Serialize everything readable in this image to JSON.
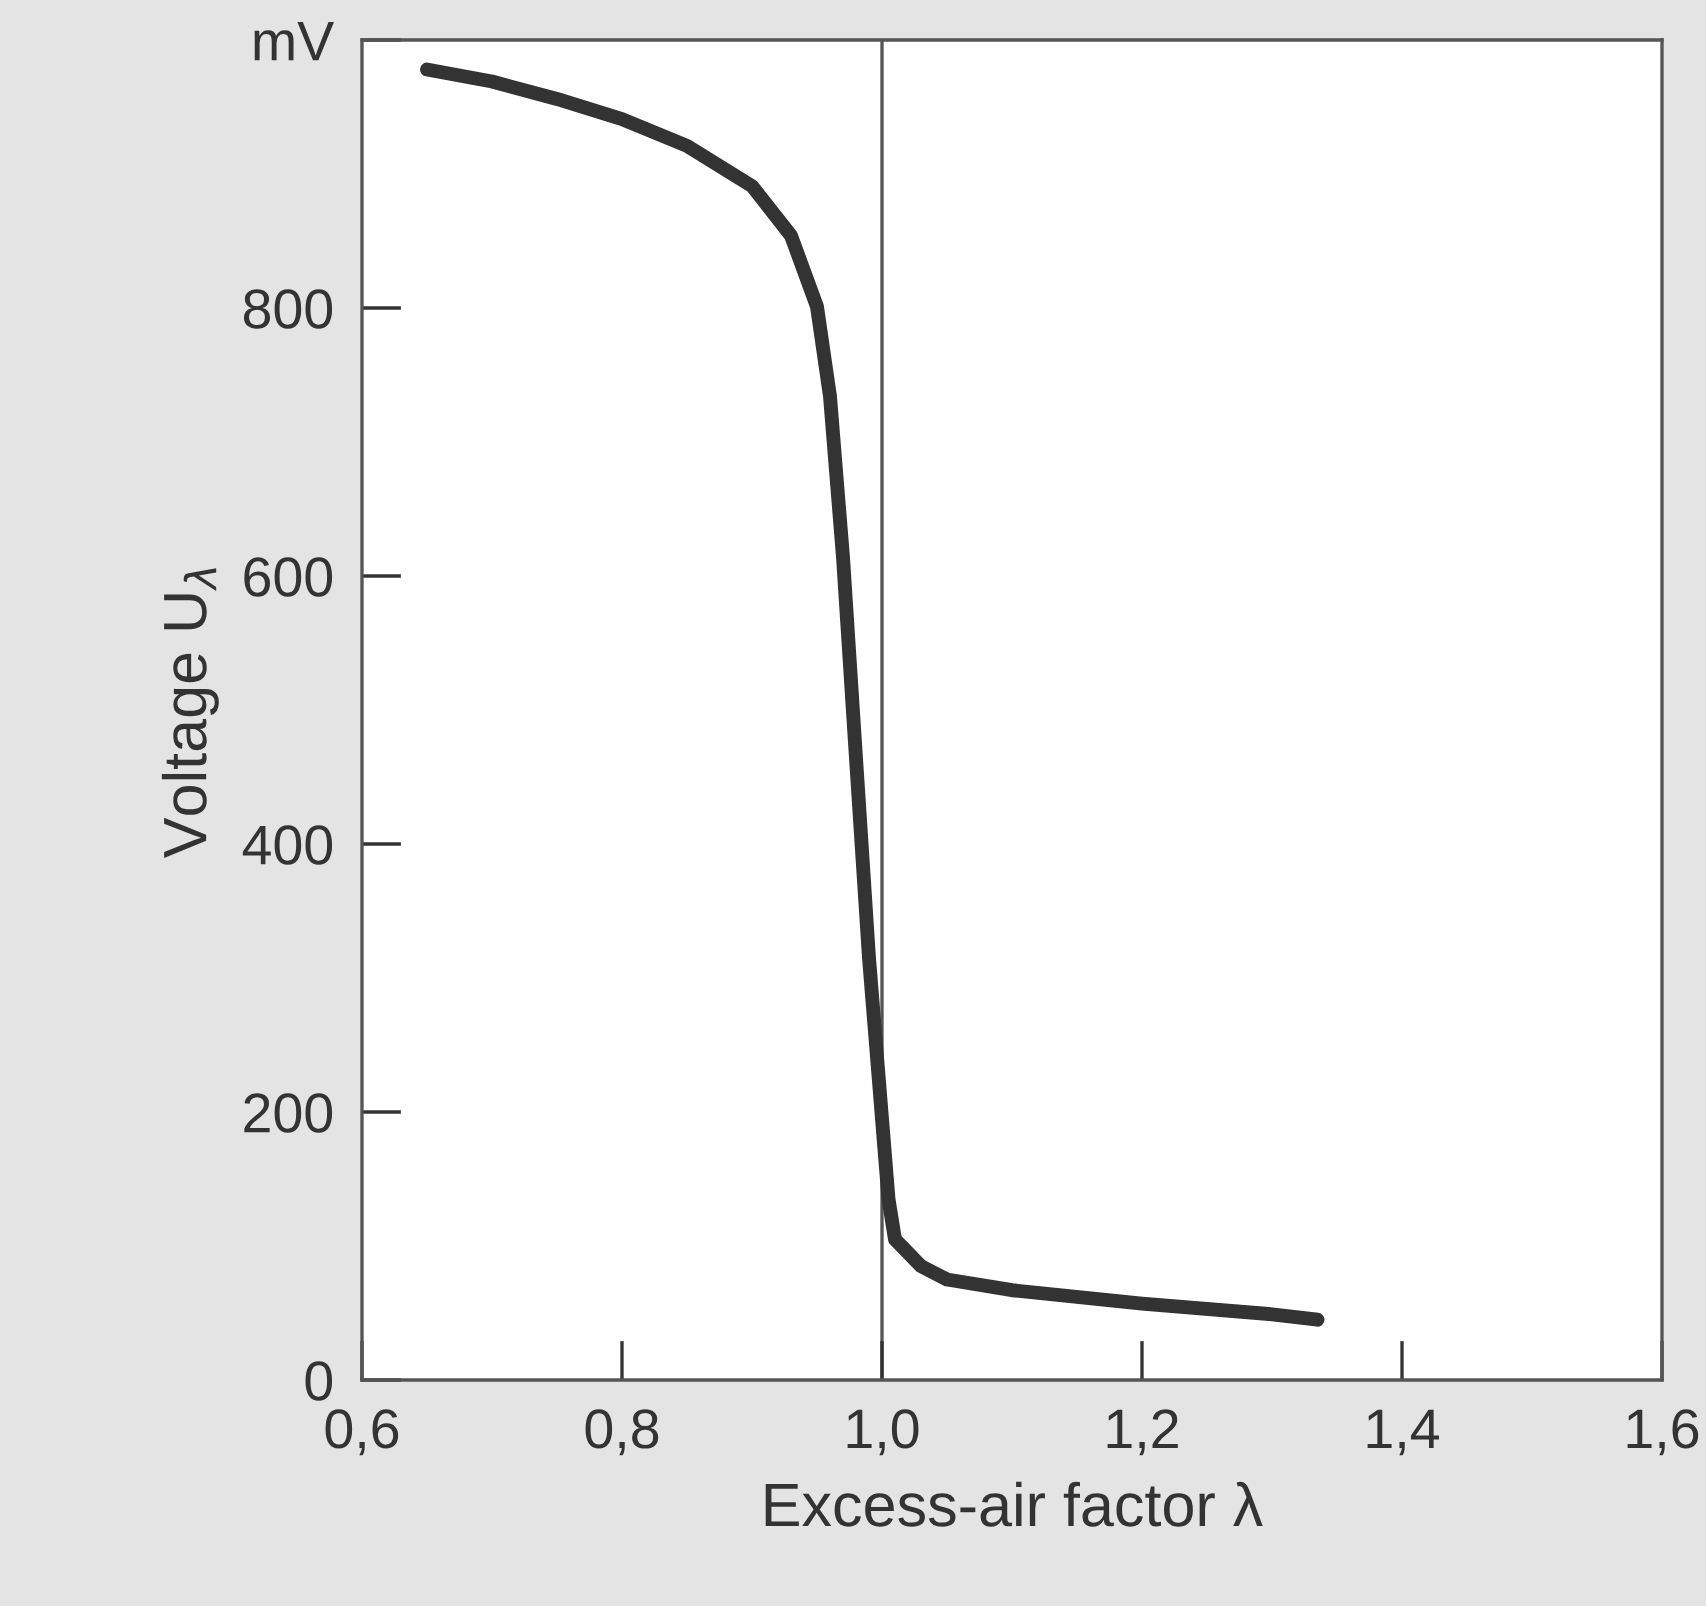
{
  "chart_data": {
    "type": "line",
    "xlabel": "Excess-air factor λ",
    "ylabel": "Voltage U$_{λ}$",
    "x": [
      0.65,
      0.7,
      0.75,
      0.8,
      0.85,
      0.9,
      0.93,
      0.95,
      0.96,
      0.97,
      0.98,
      0.99,
      1.0,
      1.005,
      1.01,
      1.03,
      1.05,
      1.1,
      1.2,
      1.3,
      1.335
    ],
    "series": [
      {
        "color": "#333333",
        "values": [
          978,
          969,
          956,
          941,
          921,
          891,
          854,
          801,
          734,
          614,
          464,
          315,
          195,
          135,
          105,
          85,
          75,
          67,
          57,
          49,
          45
        ]
      }
    ],
    "xlim": [
      0.6,
      1.6
    ],
    "ylim": [
      0,
      1000
    ],
    "xticks": [
      {
        "value": 0.6,
        "label": "0,6"
      },
      {
        "value": 0.8,
        "label": "0,8"
      },
      {
        "value": 1.0,
        "label": "1,0"
      },
      {
        "value": 1.2,
        "label": "1,2"
      },
      {
        "value": 1.4,
        "label": "1,4"
      },
      {
        "value": 1.6,
        "label": "1,6"
      }
    ],
    "yticks": [
      0,
      200,
      400,
      600,
      800,
      {
        "value": 1000,
        "label": "mV"
      }
    ],
    "ref_lines": [
      {
        "axis": "x",
        "value": 1.0,
        "color": "#555555"
      }
    ],
    "grid": false,
    "legend": false,
    "marker": "none",
    "line_style": "solid"
  }
}
